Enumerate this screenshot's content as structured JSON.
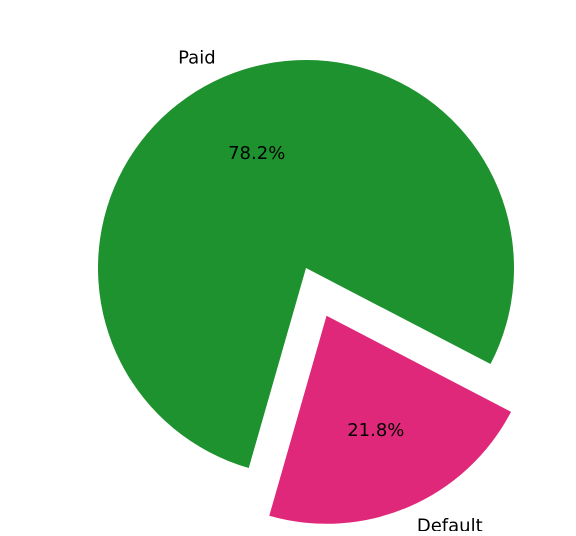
{
  "chart_data": {
    "type": "pie",
    "categories": [
      "Paid",
      "Default"
    ],
    "values": [
      78.2,
      21.8
    ],
    "value_labels": [
      "78.2%",
      "21.8%"
    ],
    "exploded": [
      false,
      true
    ],
    "colors": [
      "#1e922e",
      "#e0287a"
    ],
    "legend": "none",
    "title": ""
  }
}
